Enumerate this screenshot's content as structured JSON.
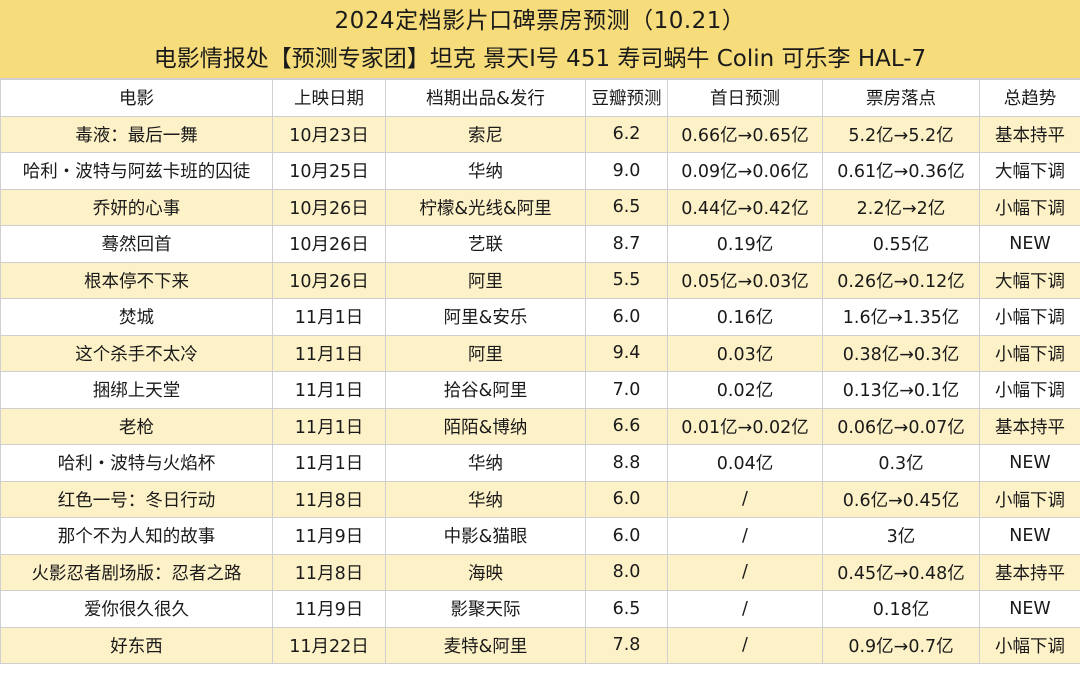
{
  "title": {
    "line1": "2024定档影片口碑票房预测（10.21）",
    "line2": "电影情报处【预测专家团】坦克 景天I号 451 寿司蜗牛 Colin 可乐李 HAL-7"
  },
  "table": {
    "headers": [
      "电影",
      "上映日期",
      "档期出品&发行",
      "豆瓣预测",
      "首日预测",
      "票房落点",
      "总趋势"
    ],
    "rows": [
      [
        "毒液：最后一舞",
        "10月23日",
        "索尼",
        "6.2",
        "0.66亿→0.65亿",
        "5.2亿→5.2亿",
        "基本持平"
      ],
      [
        "哈利・波特与阿兹卡班的囚徒",
        "10月25日",
        "华纳",
        "9.0",
        "0.09亿→0.06亿",
        "0.61亿→0.36亿",
        "大幅下调"
      ],
      [
        "乔妍的心事",
        "10月26日",
        "柠檬&光线&阿里",
        "6.5",
        "0.44亿→0.42亿",
        "2.2亿→2亿",
        "小幅下调"
      ],
      [
        "蓦然回首",
        "10月26日",
        "艺联",
        "8.7",
        "0.19亿",
        "0.55亿",
        "NEW"
      ],
      [
        "根本停不下来",
        "10月26日",
        "阿里",
        "5.5",
        "0.05亿→0.03亿",
        "0.26亿→0.12亿",
        "大幅下调"
      ],
      [
        "焚城",
        "11月1日",
        "阿里&安乐",
        "6.0",
        "0.16亿",
        "1.6亿→1.35亿",
        "小幅下调"
      ],
      [
        "这个杀手不太冷",
        "11月1日",
        "阿里",
        "9.4",
        "0.03亿",
        "0.38亿→0.3亿",
        "小幅下调"
      ],
      [
        "捆绑上天堂",
        "11月1日",
        "拾谷&阿里",
        "7.0",
        "0.02亿",
        "0.13亿→0.1亿",
        "小幅下调"
      ],
      [
        "老枪",
        "11月1日",
        "陌陌&博纳",
        "6.6",
        "0.01亿→0.02亿",
        "0.06亿→0.07亿",
        "基本持平"
      ],
      [
        "哈利・波特与火焰杯",
        "11月1日",
        "华纳",
        "8.8",
        "0.04亿",
        "0.3亿",
        "NEW"
      ],
      [
        "红色一号：冬日行动",
        "11月8日",
        "华纳",
        "6.0",
        "/",
        "0.6亿→0.45亿",
        "小幅下调"
      ],
      [
        "那个不为人知的故事",
        "11月9日",
        "中影&猫眼",
        "6.0",
        "/",
        "3亿",
        "NEW"
      ],
      [
        "火影忍者剧场版：忍者之路",
        "11月8日",
        "海映",
        "8.0",
        "/",
        "0.45亿→0.48亿",
        "基本持平"
      ],
      [
        "爱你很久很久",
        "11月9日",
        "影聚天际",
        "6.5",
        "/",
        "0.18亿",
        "NEW"
      ],
      [
        "好东西",
        "11月22日",
        "麦特&阿里",
        "7.8",
        "/",
        "0.9亿→0.7亿",
        "小幅下调"
      ]
    ]
  },
  "colors": {
    "title_band": "#f6dc7a",
    "stripe": "#fdf1c8",
    "plain": "#ffffff",
    "border": "#cfcfcf"
  }
}
